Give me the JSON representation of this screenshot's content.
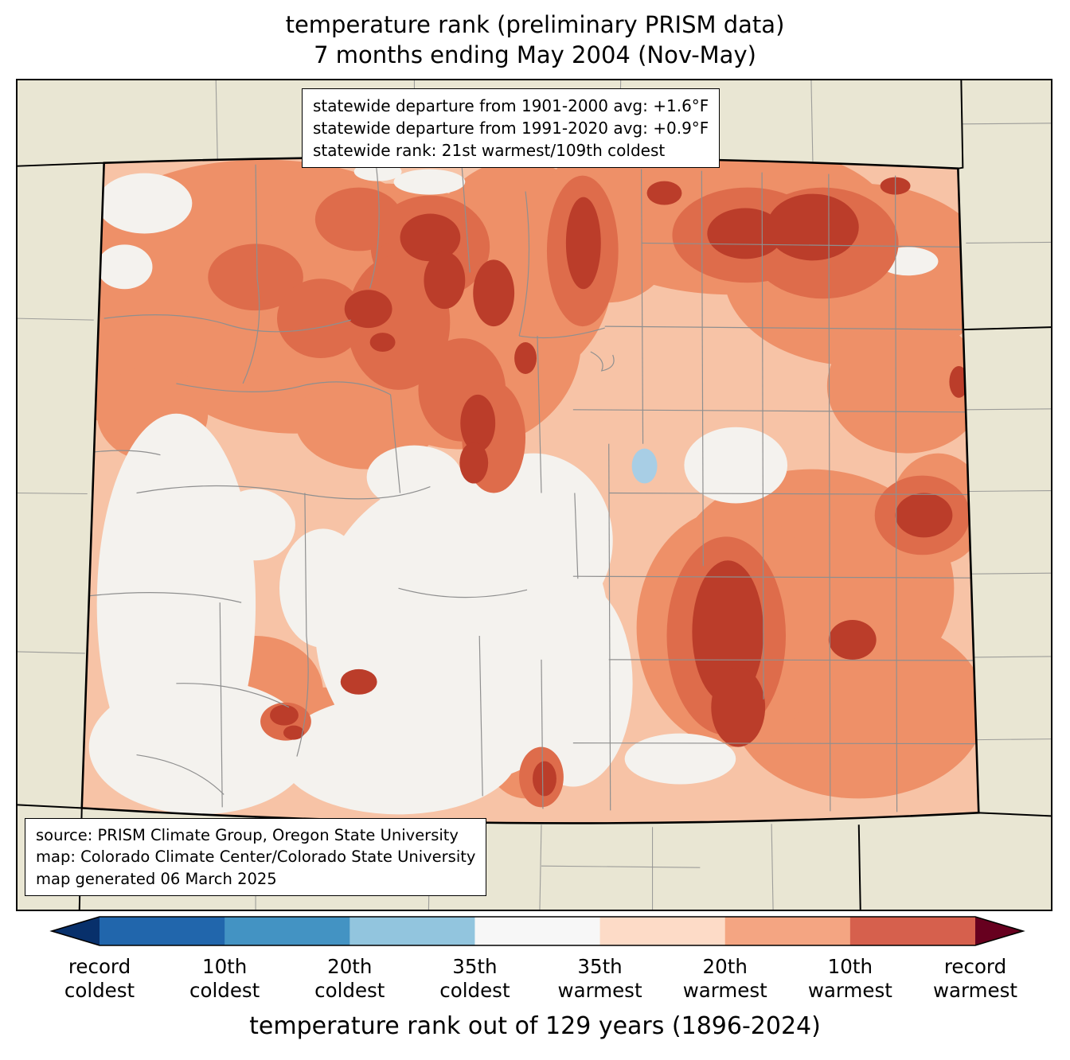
{
  "title": {
    "line1": "temperature rank (preliminary PRISM data)",
    "line2": "7 months ending May 2004 (Nov-May)"
  },
  "stats_box": {
    "lines": [
      "statewide departure from 1901-2000 avg: +1.6°F",
      "statewide departure from 1991-2020 avg: +0.9°F",
      "statewide rank: 21st warmest/109th coldest"
    ]
  },
  "source_box": {
    "lines": [
      "source: PRISM Climate Group, Oregon State University",
      "map: Colorado Climate Center/Colorado State University",
      "map generated 06 March 2025"
    ]
  },
  "colorbar": {
    "axis_label": "temperature rank out of 129 years (1896-2024)",
    "tick_labels": [
      [
        "record",
        "coldest"
      ],
      [
        "10th",
        "coldest"
      ],
      [
        "20th",
        "coldest"
      ],
      [
        "35th",
        "coldest"
      ],
      [
        "35th",
        "warmest"
      ],
      [
        "20th",
        "warmest"
      ],
      [
        "10th",
        "warmest"
      ],
      [
        "record",
        "warmest"
      ]
    ],
    "segment_colors": [
      "#2166ac",
      "#4393c3",
      "#92c5de",
      "#f7f7f7",
      "#fddbc7",
      "#f4a582",
      "#d6604d"
    ],
    "arrow_left_color": "#08306b",
    "arrow_right_color": "#67001f",
    "outline_color": "#000000"
  },
  "map_colors": {
    "background_outside": "#e9e6d3",
    "white_rank": "#f4f2ee",
    "light_warm": "#f7c3a6",
    "medium_warm": "#ee9068",
    "strong_warm": "#de6c4b",
    "dark_warm": "#bb3d2a",
    "cool_spot": "#a8cee5",
    "county_line": "#8f8f8f",
    "state_border": "#000000"
  }
}
